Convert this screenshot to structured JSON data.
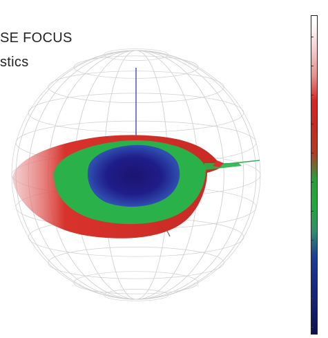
{
  "title": {
    "line1": "SE FOCUS",
    "line2": "stics"
  },
  "colorbar": {
    "header": "",
    "colors": [
      "#ffffff",
      "#f4d2d2",
      "#e88f8f",
      "#d92525",
      "#c92a1e",
      "#b33c1e",
      "#2a9b3a",
      "#1faa3a",
      "#2f8f6a",
      "#1b3f9a",
      "#1c2a8a",
      "#141e70",
      "#0c1150"
    ]
  },
  "colors": {
    "red": "#d8322c",
    "green": "#2bb14a",
    "blue": "#2a2f9e",
    "navy": "#1b1470",
    "grid": "#c9c9c9",
    "axis": "#4a4fa0"
  },
  "icons": {
    "pattern": "radiation-pattern-3d"
  }
}
